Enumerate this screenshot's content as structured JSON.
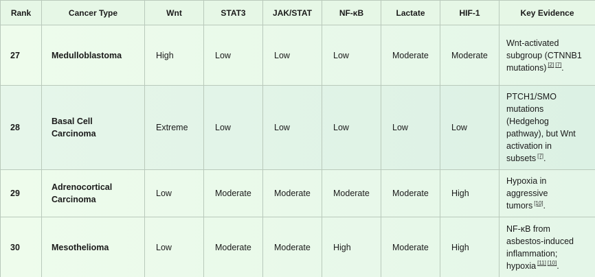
{
  "table": {
    "header": [
      "Rank",
      "Cancer Type",
      "Wnt",
      "STAT3",
      "JAK/STAT",
      "NF-κB",
      "Lactate",
      "HIF-1",
      "Key Evidence"
    ],
    "rows": [
      {
        "rank": "27",
        "cancer_type": "Medulloblastoma",
        "cells": [
          "High",
          "Low",
          "Low",
          "Low",
          "Moderate",
          "Moderate"
        ],
        "evidence": [
          {
            "text": "Wnt-activated subgroup (CTNNB1 mutations)"
          },
          {
            "ref": "[2]"
          },
          {
            "ref": "[7]"
          },
          {
            "text": "."
          }
        ]
      },
      {
        "rank": "28",
        "cancer_type": "Basal Cell Carcinoma",
        "cells": [
          "Extreme",
          "Low",
          "Low",
          "Low",
          "Low",
          "Low"
        ],
        "evidence": [
          {
            "text": "PTCH1/SMO mutations (Hedgehog pathway), but Wnt activation in subsets"
          },
          {
            "ref": "[7]"
          },
          {
            "text": "."
          }
        ]
      },
      {
        "rank": "29",
        "cancer_type": "Adrenocortical Carcinoma",
        "cells": [
          "Low",
          "Moderate",
          "Moderate",
          "Moderate",
          "Moderate",
          "High"
        ],
        "evidence": [
          {
            "text": "Hypoxia in aggressive tumors"
          },
          {
            "ref": "[10]"
          },
          {
            "text": "."
          }
        ]
      },
      {
        "rank": "30",
        "cancer_type": "Mesothelioma",
        "cells": [
          "Low",
          "Moderate",
          "Moderate",
          "High",
          "Moderate",
          "High"
        ],
        "evidence": [
          {
            "text": "NF-κB from asbestos-induced inflammation; hypoxia"
          },
          {
            "ref": "[11]"
          },
          {
            "ref": "[10]"
          },
          {
            "text": "."
          }
        ]
      }
    ]
  }
}
